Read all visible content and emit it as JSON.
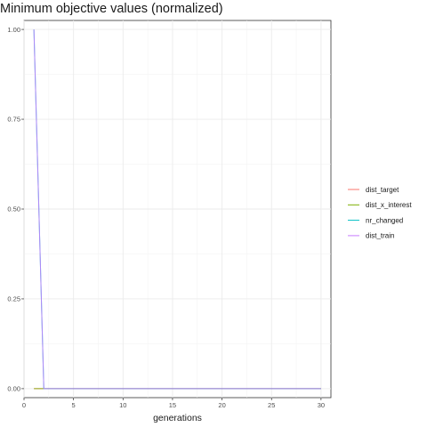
{
  "chart_data": {
    "type": "line",
    "title": "Minimum objective values (normalized)",
    "xlabel": "generations",
    "ylabel": "",
    "xlim": [
      0,
      31
    ],
    "ylim": [
      -0.025,
      1.025
    ],
    "x_ticks": [
      0,
      5,
      10,
      15,
      20,
      25,
      30
    ],
    "y_ticks": [
      0.0,
      0.25,
      0.5,
      0.75,
      1.0
    ],
    "y_tick_labels": [
      "0.00",
      "0.25",
      "0.50",
      "0.75",
      "1.00"
    ],
    "grid": true,
    "legend_position": "right",
    "series": [
      {
        "name": "dist_target",
        "color": "#F8766D",
        "x": [
          1,
          2,
          3,
          30
        ],
        "y": [
          0,
          0,
          0,
          0
        ]
      },
      {
        "name": "dist_x_interest",
        "color": "#7CAE00",
        "x": [
          1,
          2,
          30
        ],
        "y": [
          0,
          0,
          0
        ]
      },
      {
        "name": "nr_changed",
        "color": "#00BFC4",
        "x": [
          1,
          2,
          30
        ],
        "y": [
          1,
          0,
          0
        ]
      },
      {
        "name": "dist_train",
        "color": "#C77CFF",
        "x": [
          1,
          2,
          30
        ],
        "y": [
          1,
          0,
          0
        ]
      }
    ]
  }
}
